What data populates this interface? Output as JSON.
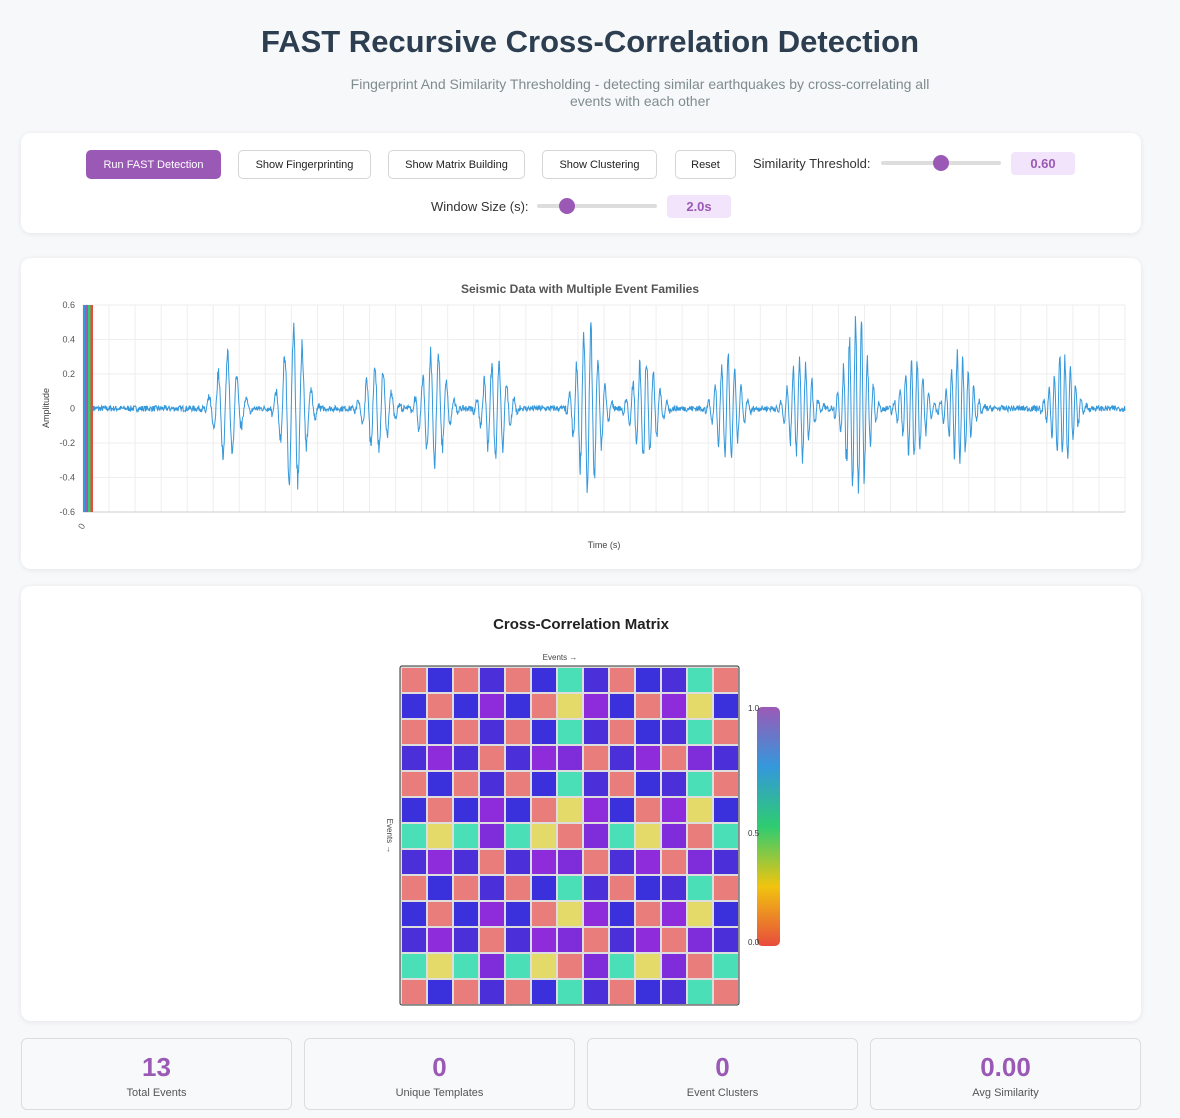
{
  "header": {
    "title": "FAST Recursive Cross-Correlation Detection",
    "subtitle": "Fingerprint And Similarity Thresholding - detecting similar earthquakes by cross-correlating all events with each other"
  },
  "controls": {
    "buttons": [
      "Run FAST Detection",
      "Show Fingerprinting",
      "Show Matrix Building",
      "Show Clustering",
      "Reset"
    ],
    "threshold": {
      "label": "Similarity Threshold:",
      "value": "0.60",
      "fraction": 0.5
    },
    "window": {
      "label": "Window Size (s):",
      "value": "2.0s",
      "fraction": 0.25
    }
  },
  "colors": {
    "accent": "#9b59b6",
    "signal": "#3498db"
  },
  "chart_data": {
    "type": "line",
    "title": "Seismic Data with Multiple Event Families",
    "xlabel": "Time (s)",
    "ylabel": "Amplitude",
    "ylim": [
      -0.6,
      0.6
    ],
    "yticks": [
      "0.6",
      "0.4",
      "0.2",
      "0",
      "-0.2",
      "-0.4",
      "-0.6"
    ],
    "xticks": [
      "0"
    ],
    "events": [
      {
        "t": 0.11,
        "amp": 0.35
      },
      {
        "t": 0.175,
        "amp": 0.55
      },
      {
        "t": 0.255,
        "amp": 0.3
      },
      {
        "t": 0.31,
        "amp": 0.38
      },
      {
        "t": 0.37,
        "amp": 0.33
      },
      {
        "t": 0.46,
        "amp": 0.55
      },
      {
        "t": 0.515,
        "amp": 0.35
      },
      {
        "t": 0.595,
        "amp": 0.33
      },
      {
        "t": 0.665,
        "amp": 0.33
      },
      {
        "t": 0.72,
        "amp": 0.6
      },
      {
        "t": 0.775,
        "amp": 0.32
      },
      {
        "t": 0.82,
        "amp": 0.35
      },
      {
        "t": 0.92,
        "amp": 0.35
      }
    ],
    "marker_colors": [
      "#3498db",
      "#9b59b6",
      "#2ecc71",
      "#e74c3c"
    ]
  },
  "matrix": {
    "title": "Cross-Correlation Matrix",
    "axis_label": "Events →",
    "colorbar_ticks": [
      "1.0",
      "0.5",
      "0.0"
    ],
    "palette": {
      "R": "#e87d7b",
      "B": "#3a31dc",
      "I": "#4b30d9",
      "P": "#8e2bdb",
      "T": "#4adfb6",
      "Y": "#e3da6a",
      "V": "#7f2ddb"
    },
    "rows": [
      "RBRIRBTIRBITR",
      "BRBPBRYPBRPYB",
      "RBRIRBTIRBITR",
      "IPIRIPVRIPRVI",
      "RBRIRBTIRBITR",
      "BRBPBRYPBRPYB",
      "TYTVTYRVTYVRT",
      "IPIRIPVRIPRVI",
      "RBRIRBTIRBITR",
      "BRBPBRYPBRPYB",
      "IPIRIPVRIPRVI",
      "TYTVTYRVTYVRT",
      "RBRIRBTIRBITR"
    ]
  },
  "stats": [
    {
      "value": "13",
      "label": "Total Events"
    },
    {
      "value": "0",
      "label": "Unique Templates"
    },
    {
      "value": "0",
      "label": "Event Clusters"
    },
    {
      "value": "0.00",
      "label": "Avg Similarity"
    }
  ]
}
